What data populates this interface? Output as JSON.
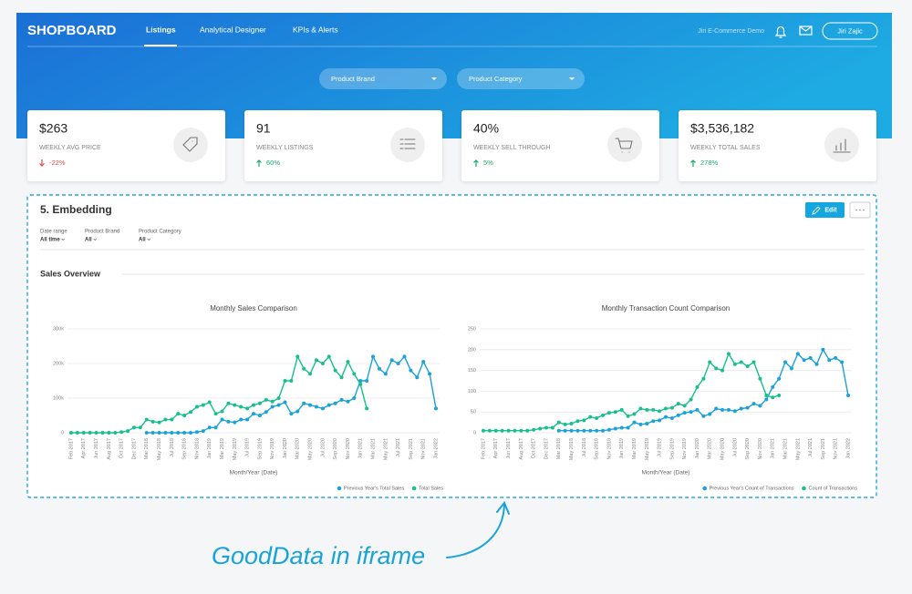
{
  "header": {
    "logo": "SHOPBOARD",
    "nav": [
      "Listings",
      "Analytical Designer",
      "KPIs & Alerts"
    ],
    "workspace": "Jiri E-Commerce Demo",
    "user": "Jiri Zajic"
  },
  "filters": [
    "Product Brand",
    "Product Category"
  ],
  "kpis": [
    {
      "value": "$263",
      "label": "WEEKLY AVG PRICE",
      "change": "-22%",
      "direction": "down"
    },
    {
      "value": "91",
      "label": "WEEKLY LISTINGS",
      "change": "60%",
      "direction": "up"
    },
    {
      "value": "40%",
      "label": "WEEKLY SELL THROUGH",
      "change": "5%",
      "direction": "up"
    },
    {
      "value": "$3,536,182",
      "label": "WEEKLY TOTAL SALES",
      "change": "278%",
      "direction": "up"
    }
  ],
  "embed": {
    "title": "5. Embedding",
    "edit": "Edit",
    "filters": [
      {
        "label": "Date range",
        "value": "All time"
      },
      {
        "label": "Product Brand",
        "value": "All"
      },
      {
        "label": "Product Category",
        "value": "All"
      }
    ],
    "section": "Sales Overview"
  },
  "chart_data": [
    {
      "type": "line",
      "title": "Monthly Sales Comparison",
      "x_label": "Month/Year (Date)",
      "categories": [
        "Feb 2017",
        null,
        "Apr 2017",
        null,
        "Jun 2017",
        null,
        "Aug 2017",
        null,
        "Oct 2017",
        null,
        "Dec 2017",
        null,
        "Mar 2018",
        null,
        "May 2018",
        null,
        "Jul 2018",
        null,
        "Sep 2018",
        null,
        "Nov 2018",
        null,
        "Jan 2019",
        null,
        "Mar 2019",
        null,
        "May 2019",
        null,
        "Jul 2019",
        null,
        "Sep 2019",
        null,
        "Nov 2019",
        null,
        "Jan 2020",
        null,
        "Mar 2020",
        null,
        "May 2020",
        null,
        "Jul 2020",
        null,
        "Sep 2020",
        null,
        "Nov 2020",
        null,
        "Jan 2021",
        null,
        "Mar 2021",
        null,
        "May 2021",
        null,
        "Jul 2021",
        null,
        "Sep 2021",
        null,
        "Nov 2021",
        null,
        "Jan 2022"
      ],
      "series": [
        {
          "name": "Previous Year's Total Sales",
          "color": "#1ba2d8",
          "values": [
            null,
            null,
            null,
            null,
            null,
            null,
            null,
            null,
            null,
            null,
            null,
            null,
            0,
            0,
            0,
            0,
            0,
            0,
            0,
            0,
            2000,
            5000,
            15000,
            15000,
            38000,
            32000,
            30000,
            38000,
            38000,
            55000,
            50000,
            60000,
            75000,
            80000,
            88000,
            55000,
            62000,
            85000,
            80000,
            75000,
            70000,
            80000,
            85000,
            95000,
            90000,
            100000,
            150000,
            150000,
            220000,
            185000,
            170000,
            210000,
            200000,
            220000,
            180000,
            160000,
            205000,
            170000,
            70000
          ]
        },
        {
          "name": "Total Sales",
          "color": "#19bf8e",
          "values": [
            0,
            0,
            0,
            0,
            0,
            0,
            0,
            0,
            2000,
            5000,
            15000,
            15000,
            38000,
            32000,
            30000,
            38000,
            38000,
            55000,
            50000,
            60000,
            75000,
            80000,
            88000,
            55000,
            62000,
            85000,
            80000,
            75000,
            70000,
            80000,
            85000,
            95000,
            90000,
            100000,
            150000,
            150000,
            220000,
            185000,
            170000,
            210000,
            200000,
            220000,
            180000,
            160000,
            205000,
            170000,
            140000,
            70000,
            null,
            null,
            null,
            null,
            null,
            null,
            null,
            null,
            null,
            null,
            null
          ]
        }
      ],
      "ylim": [
        0,
        300000
      ],
      "yticks": [
        0,
        {
          "value": 100000,
          "label": "100k"
        },
        {
          "value": 200000,
          "label": "200k"
        },
        {
          "value": 300000,
          "label": "300k"
        }
      ],
      "grid": true,
      "legend": "bottom-right"
    },
    {
      "type": "line",
      "title": "Monthly Transaction Count Comparison",
      "x_label": "Month/Year (Date)",
      "categories": [
        "Feb 2017",
        null,
        "Apr 2017",
        null,
        "Jun 2017",
        null,
        "Aug 2017",
        null,
        "Oct 2017",
        null,
        "Dec 2017",
        null,
        "Mar 2018",
        null,
        "May 2018",
        null,
        "Jul 2018",
        null,
        "Sep 2018",
        null,
        "Nov 2018",
        null,
        "Jan 2019",
        null,
        "Mar 2019",
        null,
        "May 2019",
        null,
        "Jul 2019",
        null,
        "Sep 2019",
        null,
        "Nov 2019",
        null,
        "Jan 2020",
        null,
        "Mar 2020",
        null,
        "May 2020",
        null,
        "Jul 2020",
        null,
        "Sep 2020",
        null,
        "Nov 2020",
        null,
        "Jan 2021",
        null,
        "Mar 2021",
        null,
        "May 2021",
        null,
        "Jul 2021",
        null,
        "Sep 2021",
        null,
        "Nov 2021",
        null,
        "Jan 2022"
      ],
      "series": [
        {
          "name": "Previous Year's Count of Transactions",
          "color": "#1ba2d8",
          "values": [
            null,
            null,
            null,
            null,
            null,
            null,
            null,
            null,
            null,
            null,
            null,
            null,
            5,
            5,
            5,
            5,
            5,
            5,
            5,
            5,
            7,
            10,
            12,
            12,
            25,
            20,
            22,
            28,
            30,
            38,
            35,
            42,
            48,
            50,
            55,
            40,
            45,
            58,
            55,
            55,
            52,
            58,
            60,
            70,
            65,
            80,
            110,
            130,
            170,
            155,
            190,
            175,
            180,
            165,
            200,
            175,
            180,
            170,
            90
          ]
        },
        {
          "name": "Count of Transactions",
          "color": "#19bf8e",
          "values": [
            5,
            5,
            5,
            5,
            5,
            5,
            5,
            5,
            7,
            10,
            12,
            12,
            25,
            20,
            22,
            28,
            30,
            38,
            35,
            42,
            48,
            50,
            55,
            40,
            45,
            58,
            55,
            55,
            52,
            58,
            60,
            70,
            65,
            80,
            110,
            130,
            170,
            155,
            150,
            190,
            165,
            170,
            160,
            170,
            130,
            90,
            85,
            90,
            null,
            null,
            null,
            null,
            null,
            null,
            null,
            null,
            null,
            null,
            null
          ]
        }
      ],
      "ylim": [
        0,
        250
      ],
      "yticks": [
        0,
        50,
        100,
        150,
        200,
        250
      ],
      "grid": true,
      "legend": "bottom-right"
    }
  ],
  "annotation": "GoodData in iframe"
}
